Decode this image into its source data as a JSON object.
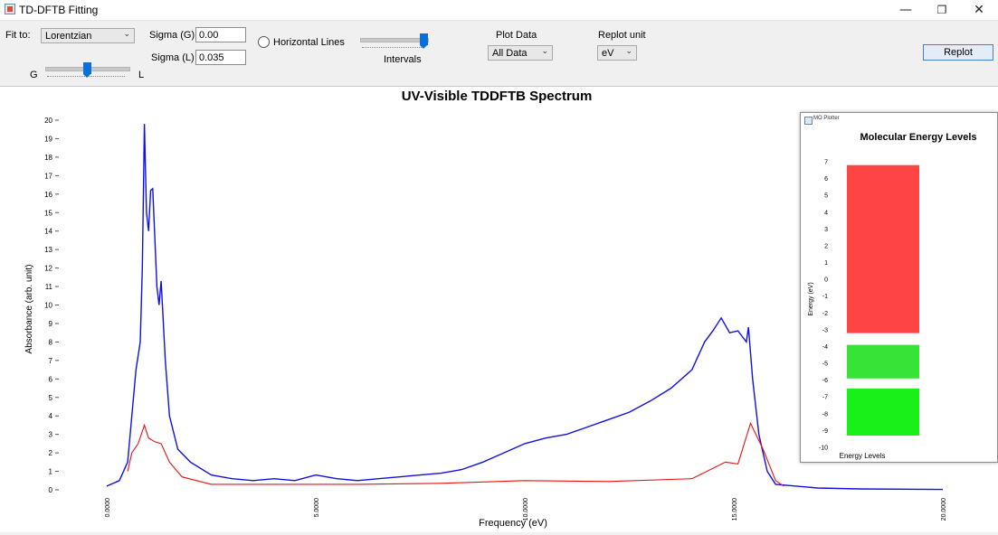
{
  "window": {
    "title": "TD-DFTB Fitting",
    "minimize": "—",
    "maximize": "❐",
    "close": "✕"
  },
  "controls": {
    "fit_to_label": "Fit to:",
    "fit_to_value": "Lorentzian",
    "sigma_g_label": "Sigma (G)",
    "sigma_g_value": "0.00",
    "sigma_l_label": "Sigma (L)",
    "sigma_l_value": "0.035",
    "horizontal_lines_label": "Horizontal Lines",
    "intervals_label": "Intervals",
    "plot_data_label": "Plot Data",
    "plot_data_value": "All Data",
    "replot_unit_label": "Replot unit",
    "replot_unit_value": "eV",
    "replot_button": "Replot",
    "slider_g_label": "G",
    "slider_l_label": "L",
    "gl_slider_value": 0.5,
    "intervals_slider_value": 1.0
  },
  "chart_data": {
    "type": "line",
    "title": "UV-Visible TDDFTB Spectrum",
    "xlabel": "Frequency (eV)",
    "ylabel": "Absorbance (arb. unit)",
    "xlim": [
      0,
      20
    ],
    "ylim": [
      0,
      20
    ],
    "x_ticks": [
      "0.0000",
      "5.0000",
      "10.0000",
      "15.0000",
      "20.0000"
    ],
    "y_ticks": [
      "0",
      "1",
      "2",
      "3",
      "4",
      "5",
      "6",
      "7",
      "8",
      "9",
      "10",
      "11",
      "12",
      "13",
      "14",
      "15",
      "16",
      "17",
      "18",
      "19",
      "20"
    ],
    "series": [
      {
        "color": "#1010e0",
        "points": [
          [
            0,
            0.2
          ],
          [
            0.3,
            0.5
          ],
          [
            0.5,
            1.5
          ],
          [
            0.6,
            4
          ],
          [
            0.7,
            6.5
          ],
          [
            0.8,
            8
          ],
          [
            0.85,
            12
          ],
          [
            0.9,
            19.8
          ],
          [
            0.95,
            15
          ],
          [
            1.0,
            14
          ],
          [
            1.05,
            16.2
          ],
          [
            1.1,
            16.3
          ],
          [
            1.2,
            11
          ],
          [
            1.25,
            10
          ],
          [
            1.3,
            11.3
          ],
          [
            1.4,
            7
          ],
          [
            1.5,
            4
          ],
          [
            1.7,
            2.2
          ],
          [
            2.0,
            1.5
          ],
          [
            2.5,
            0.8
          ],
          [
            3,
            0.6
          ],
          [
            3.5,
            0.5
          ],
          [
            4,
            0.6
          ],
          [
            4.5,
            0.5
          ],
          [
            5,
            0.8
          ],
          [
            5.5,
            0.6
          ],
          [
            6,
            0.5
          ],
          [
            6.5,
            0.6
          ],
          [
            7,
            0.7
          ],
          [
            7.5,
            0.8
          ],
          [
            8,
            0.9
          ],
          [
            8.5,
            1.1
          ],
          [
            9,
            1.5
          ],
          [
            9.5,
            2.0
          ],
          [
            10,
            2.5
          ],
          [
            10.5,
            2.8
          ],
          [
            11,
            3.0
          ],
          [
            11.5,
            3.4
          ],
          [
            12,
            3.8
          ],
          [
            12.5,
            4.2
          ],
          [
            13,
            4.8
          ],
          [
            13.5,
            5.5
          ],
          [
            14,
            6.5
          ],
          [
            14.3,
            8
          ],
          [
            14.5,
            8.6
          ],
          [
            14.7,
            9.3
          ],
          [
            14.9,
            8.5
          ],
          [
            15.1,
            8.6
          ],
          [
            15.3,
            8.0
          ],
          [
            15.35,
            8.8
          ],
          [
            15.45,
            6.0
          ],
          [
            15.6,
            3.0
          ],
          [
            15.8,
            1.0
          ],
          [
            16.0,
            0.3
          ],
          [
            17,
            0.1
          ],
          [
            18,
            0.05
          ],
          [
            20,
            0.02
          ]
        ]
      },
      {
        "color": "#e81010",
        "points": [
          [
            0.5,
            1.0
          ],
          [
            0.6,
            2.0
          ],
          [
            0.75,
            2.5
          ],
          [
            0.9,
            3.5
          ],
          [
            1.0,
            2.8
          ],
          [
            1.15,
            2.6
          ],
          [
            1.3,
            2.5
          ],
          [
            1.5,
            1.5
          ],
          [
            1.8,
            0.7
          ],
          [
            2.5,
            0.3
          ],
          [
            4,
            0.3
          ],
          [
            6,
            0.3
          ],
          [
            8,
            0.35
          ],
          [
            10,
            0.5
          ],
          [
            12,
            0.45
          ],
          [
            14,
            0.6
          ],
          [
            14.8,
            1.5
          ],
          [
            15.1,
            1.4
          ],
          [
            15.4,
            3.6
          ],
          [
            15.7,
            2.2
          ],
          [
            16,
            0.5
          ],
          [
            16.2,
            0.2
          ]
        ]
      }
    ]
  },
  "mo_window": {
    "title": "MO Plotter",
    "chart_title": "Molecular  Energy  Levels",
    "ylabel": "Energy (eV)",
    "xlabel": "Energy  Levels",
    "ylim": [
      -10,
      7
    ],
    "y_ticks": [
      "7",
      "6",
      "5",
      "4",
      "3",
      "2",
      "1",
      "0",
      "-1",
      "-2",
      "-3",
      "-4",
      "-5",
      "-6",
      "-7",
      "-8",
      "-9",
      "-10"
    ],
    "bands": [
      {
        "color": "#ff3030",
        "from": -3.2,
        "to": 6.8
      },
      {
        "color": "#22e022",
        "from": -5.9,
        "to": -3.9
      },
      {
        "color": "#00ee00",
        "from": -9.3,
        "to": -6.5
      }
    ]
  }
}
